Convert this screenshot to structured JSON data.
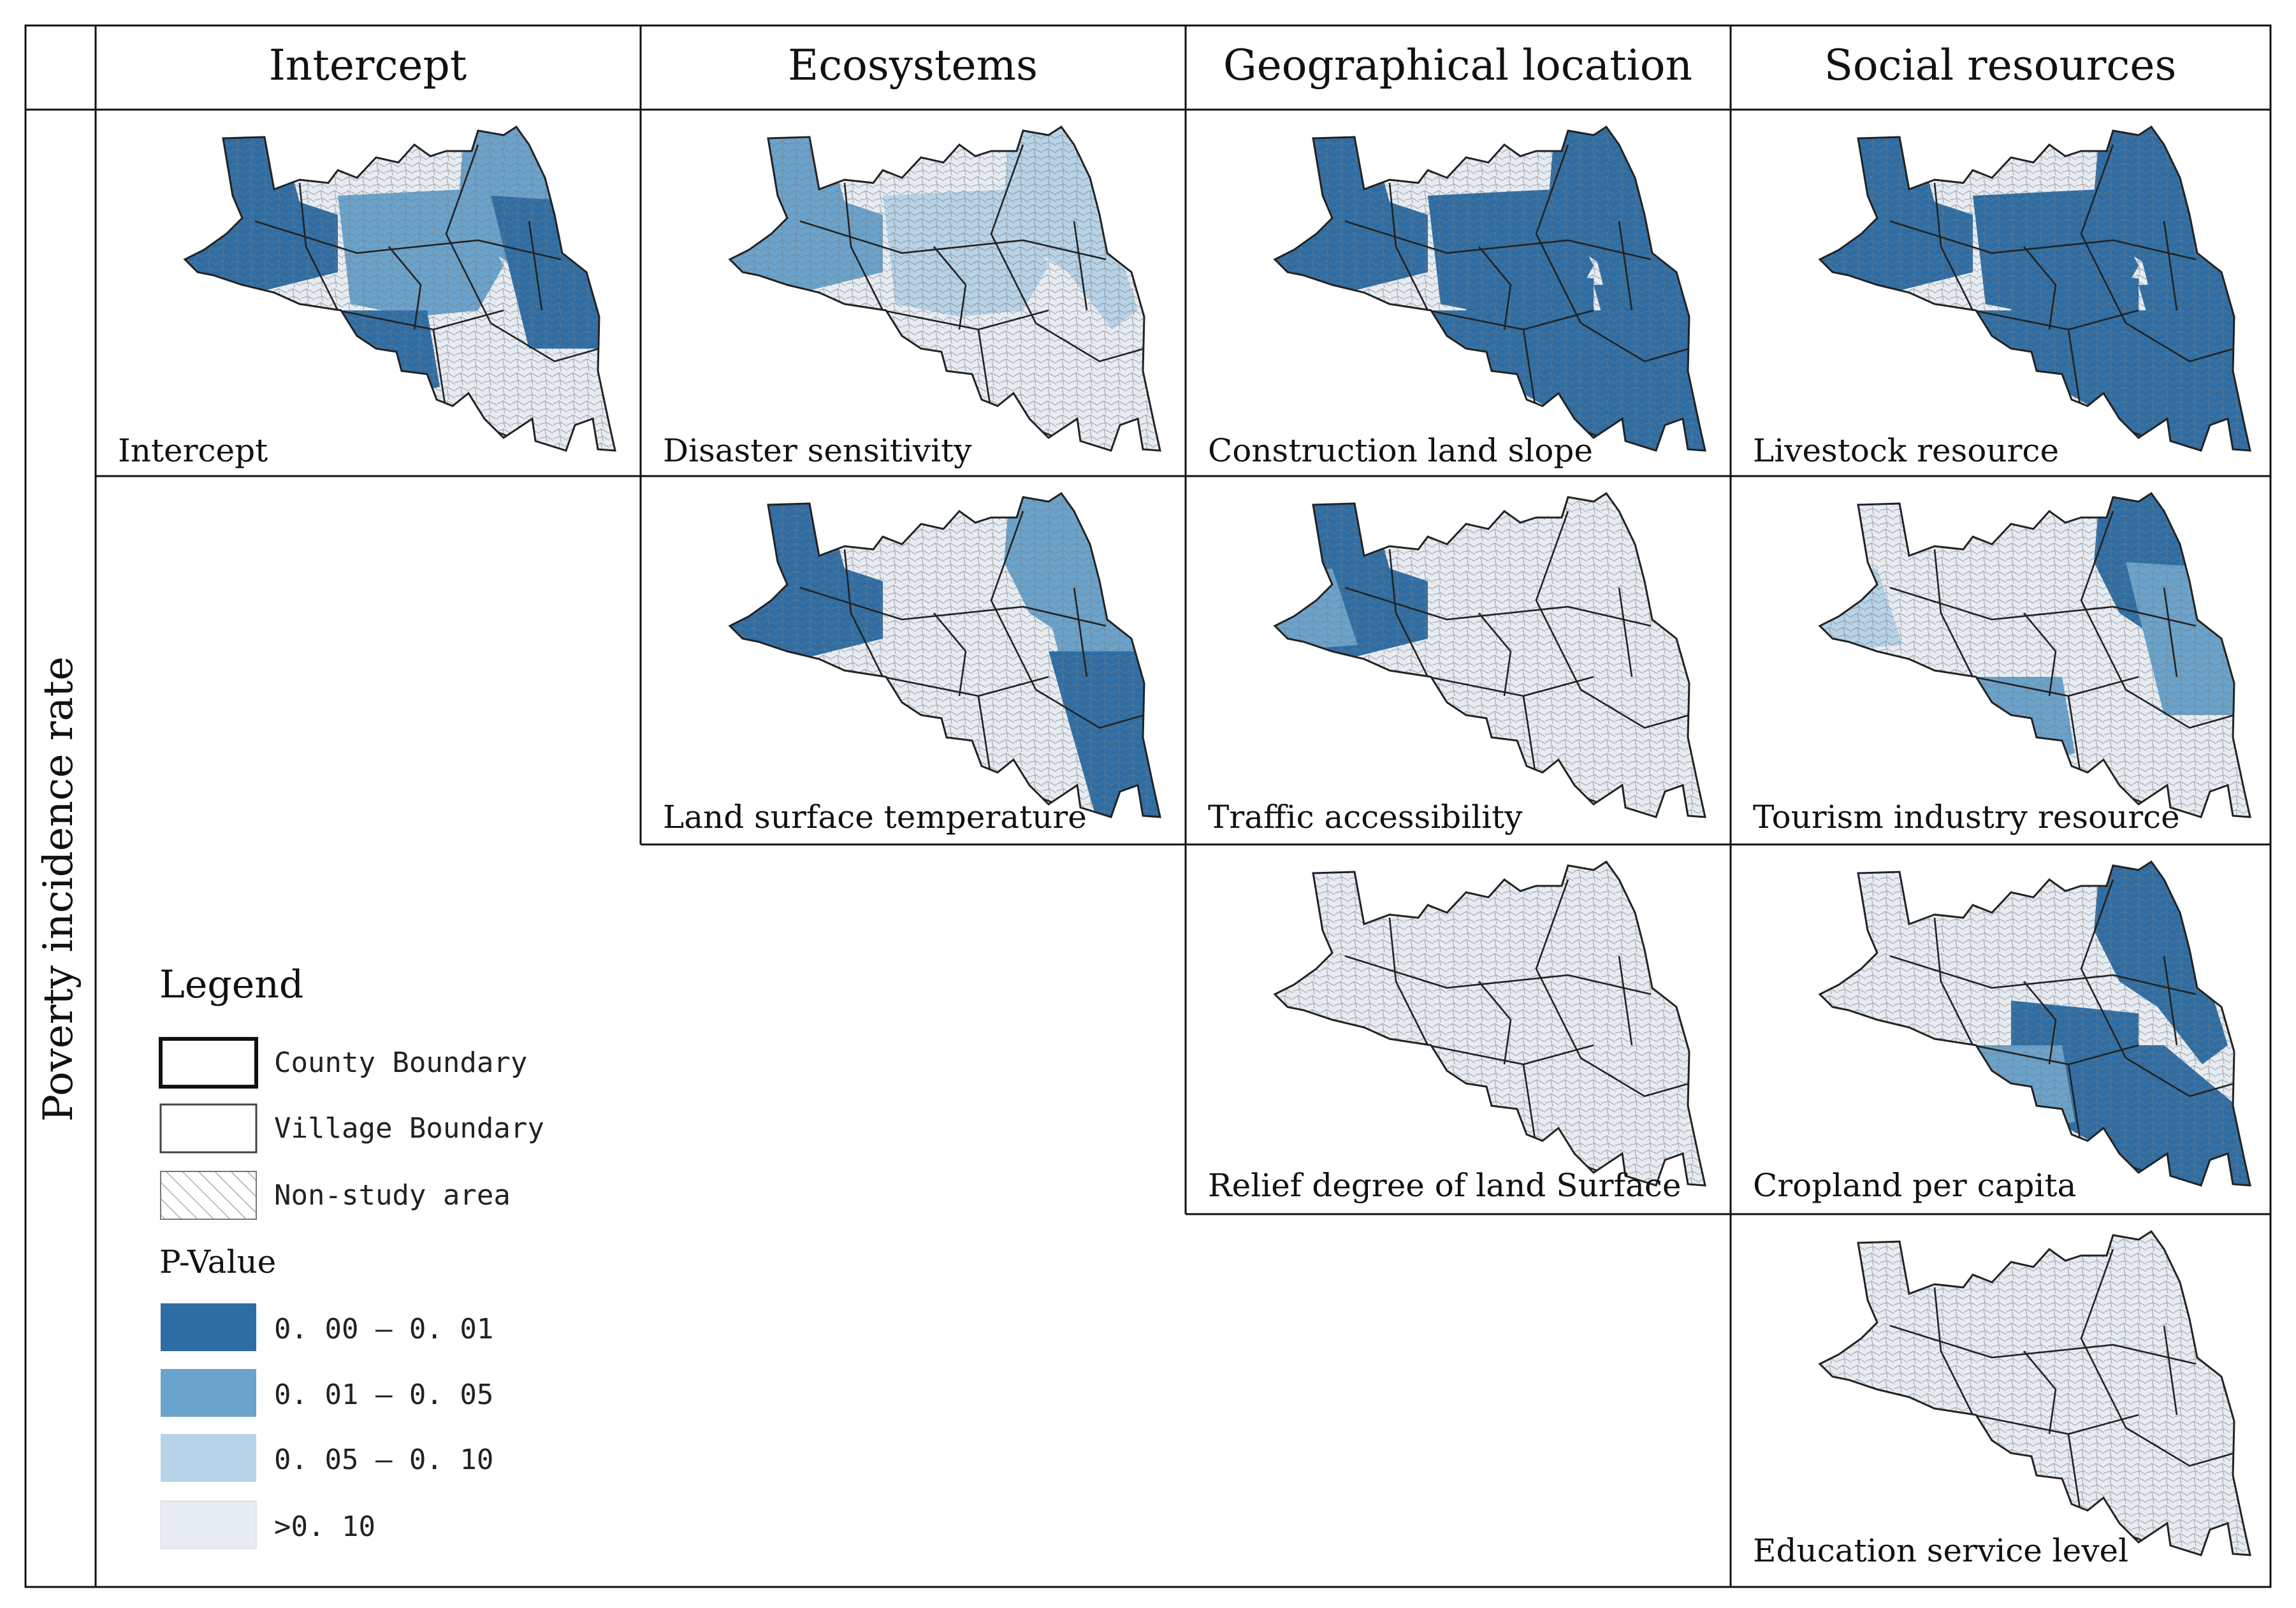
{
  "row_label": "Poverty incidence rate",
  "columns": [
    "Intercept",
    "Ecosystems",
    "Geographical location",
    "Social resources"
  ],
  "palette": {
    "p_0_01": "#2e6da4",
    "p_0_05": "#6aa3cc",
    "p_0_10": "#b7d3e8",
    "p_gt": "#e6ecf2",
    "boundary": "#555555"
  },
  "panels": [
    {
      "key": "intercept",
      "col": 0,
      "row": 0,
      "label": "Intercept",
      "pattern": "intercept"
    },
    {
      "key": "disaster",
      "col": 1,
      "row": 0,
      "label": "Disaster sensitivity",
      "pattern": "disaster"
    },
    {
      "key": "lst",
      "col": 1,
      "row": 1,
      "label": "Land surface temperature",
      "pattern": "lst"
    },
    {
      "key": "slope",
      "col": 2,
      "row": 0,
      "label": "Construction land slope",
      "pattern": "slope"
    },
    {
      "key": "traffic",
      "col": 2,
      "row": 1,
      "label": "Traffic accessibility",
      "pattern": "traffic"
    },
    {
      "key": "relief",
      "col": 2,
      "row": 2,
      "label": "Relief degree of land Surface",
      "pattern": "none"
    },
    {
      "key": "livestock",
      "col": 3,
      "row": 0,
      "label": "Livestock resource",
      "pattern": "slope"
    },
    {
      "key": "tourism",
      "col": 3,
      "row": 1,
      "label": "Tourism industry resource",
      "pattern": "tourism"
    },
    {
      "key": "cropland",
      "col": 3,
      "row": 2,
      "label": "Cropland per capita",
      "pattern": "cropland"
    },
    {
      "key": "education",
      "col": 3,
      "row": 3,
      "label": "Education service level",
      "pattern": "none"
    }
  ],
  "legend": {
    "title": "Legend",
    "boundaries": [
      "County Boundary",
      "Village Boundary",
      "Non-study area"
    ],
    "pvalue_title": "P-Value",
    "classes": [
      {
        "label": "0. 00 — 0. 01",
        "color": "#2e6da4"
      },
      {
        "label": "0. 01 — 0. 05",
        "color": "#6aa3cc"
      },
      {
        "label": "0. 05 — 0. 10",
        "color": "#b7d3e8"
      },
      {
        "label": ">0. 10",
        "color": "#e6ecf2"
      }
    ]
  }
}
